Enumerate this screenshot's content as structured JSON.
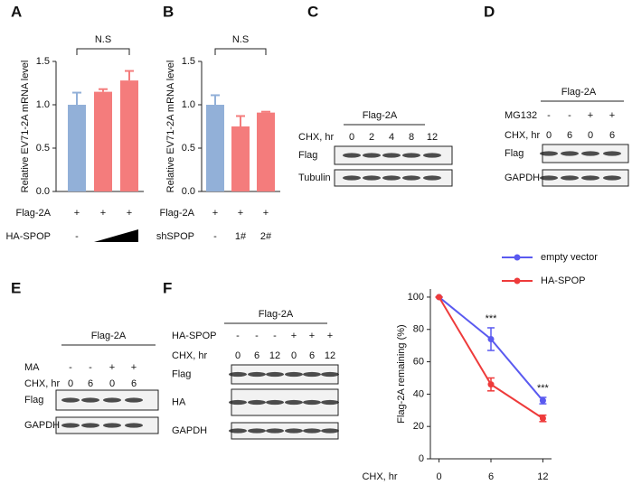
{
  "chart_data": [
    {
      "type": "bar",
      "label": "A",
      "ylabel": "Relative EV71-2A  mRNA level",
      "values": [
        1.0,
        1.15,
        1.28
      ],
      "errors": [
        0.14,
        0.03,
        0.11
      ],
      "colors": [
        "#92b0d8",
        "#f47c7c",
        "#f47c7c"
      ],
      "ylim": [
        0,
        1.5
      ],
      "yticks": [
        {
          "value": 0,
          "label": "0.0"
        },
        {
          "value": 0.5,
          "label": "0.5"
        },
        {
          "value": 1,
          "label": "1.0"
        },
        {
          "value": 1.5,
          "label": "1.5"
        }
      ],
      "annotation": "N.S",
      "rows": [
        {
          "label": "Flag-2A",
          "cells": [
            "+",
            "+",
            "+"
          ]
        },
        {
          "label": "HA-SPOP",
          "cells": [
            "-"
          ],
          "ramp": true
        }
      ]
    },
    {
      "type": "bar",
      "label": "B",
      "ylabel": "Relative EV71-2A  mRNA level",
      "values": [
        1.0,
        0.75,
        0.91
      ],
      "errors": [
        0.11,
        0.12,
        0.01
      ],
      "colors": [
        "#92b0d8",
        "#f47c7c",
        "#f47c7c"
      ],
      "ylim": [
        0,
        1.5
      ],
      "yticks": [
        {
          "value": 0,
          "label": "0.0"
        },
        {
          "value": 0.5,
          "label": "0.5"
        },
        {
          "value": 1,
          "label": "1.0"
        },
        {
          "value": 1.5,
          "label": "1.5"
        }
      ],
      "annotation": "N.S",
      "rows": [
        {
          "label": "Flag-2A",
          "cells": [
            "+",
            "+",
            "+"
          ]
        },
        {
          "label": "shSPOP",
          "cells": [
            "-",
            "1#",
            "2#"
          ]
        }
      ]
    },
    {
      "type": "line",
      "xlabel": "CHX, hr",
      "ylabel": "Flag-2A remaining (%)",
      "x": [
        0,
        6,
        12
      ],
      "xlim": [
        -1,
        13
      ],
      "xticks": [
        0,
        6,
        12
      ],
      "ylim": [
        0,
        105
      ],
      "yticks": [
        0,
        20,
        40,
        60,
        80,
        100
      ],
      "legend": "top-right",
      "annotations": [
        {
          "x": 6,
          "text": "***"
        },
        {
          "x": 12,
          "text": "***"
        }
      ],
      "series": [
        {
          "name": "empty vector",
          "color": "#5a5af0",
          "values": [
            100,
            74,
            36
          ],
          "errors": [
            0,
            7,
            2
          ]
        },
        {
          "name": "HA-SPOP",
          "color": "#ee3b3b",
          "values": [
            100,
            46,
            25
          ],
          "errors": [
            0,
            4,
            2
          ]
        }
      ]
    }
  ],
  "blots": [
    {
      "label": "C",
      "title": "Flag-2A",
      "rows": [
        {
          "label": "CHX, hr",
          "cells": [
            "0",
            "2",
            "4",
            "8",
            "12"
          ]
        }
      ],
      "bands": [
        "Flag",
        "Tubulin"
      ]
    },
    {
      "label": "D",
      "title": "Flag-2A",
      "rows": [
        {
          "label": "MG132",
          "cells": [
            "-",
            "-",
            "+",
            "+"
          ]
        },
        {
          "label": "CHX, hr",
          "cells": [
            "0",
            "6",
            "0",
            "6"
          ]
        }
      ],
      "bands": [
        "Flag",
        "GAPDH"
      ]
    },
    {
      "label": "E",
      "title": "Flag-2A",
      "rows": [
        {
          "label": "MA",
          "cells": [
            "-",
            "-",
            "+",
            "+"
          ]
        },
        {
          "label": "CHX, hr",
          "cells": [
            "0",
            "6",
            "0",
            "6"
          ]
        }
      ],
      "bands": [
        "Flag",
        "GAPDH"
      ]
    },
    {
      "label": "F",
      "title": "Flag-2A",
      "rows": [
        {
          "label": "HA-SPOP",
          "cells": [
            "-",
            "-",
            "-",
            "+",
            "+",
            "+"
          ]
        },
        {
          "label": "CHX, hr",
          "cells": [
            "0",
            "6",
            "12",
            "0",
            "6",
            "12"
          ]
        }
      ],
      "bands": [
        "Flag",
        "HA",
        "GAPDH"
      ]
    }
  ]
}
